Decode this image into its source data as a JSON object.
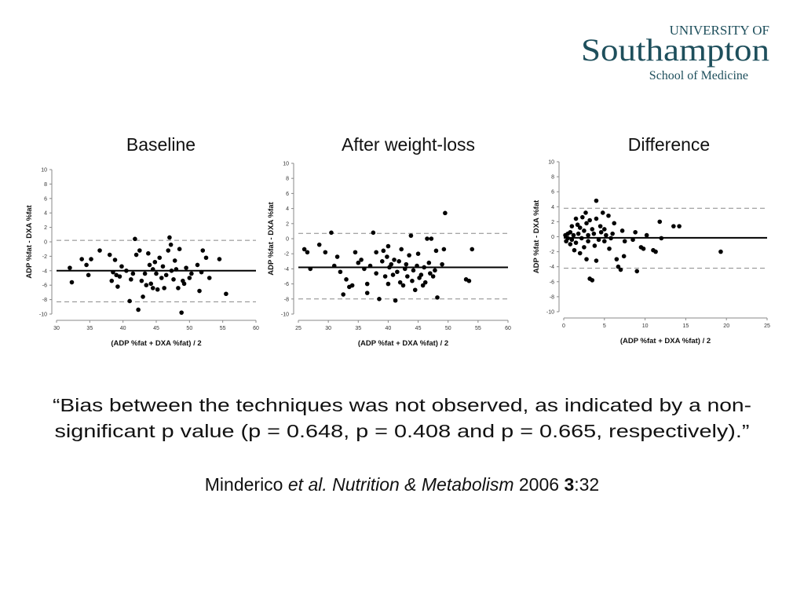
{
  "logo": {
    "line1": "UNIVERSITY OF",
    "line2": "Southampton",
    "line3": "School of Medicine"
  },
  "chart_data": [
    {
      "type": "scatter",
      "title": "Baseline",
      "xlabel": "(ADP %fat + DXA %fat) / 2",
      "ylabel": "ADP %fat - DXA %fat",
      "xlim": [
        30,
        60
      ],
      "ylim": [
        -10,
        10
      ],
      "xticks": [
        30,
        35,
        40,
        45,
        50,
        55,
        60
      ],
      "yticks": [
        -10,
        -8,
        -6,
        -4,
        -2,
        0,
        2,
        4,
        6,
        8,
        10
      ],
      "color": "#000000",
      "mean_line": -4.0,
      "limit_lines": [
        0.2,
        -8.3
      ],
      "x": [
        32,
        32.3,
        33.8,
        34.5,
        34.8,
        35.2,
        36.5,
        38,
        38.3,
        38.5,
        38.8,
        39,
        39.2,
        39.5,
        39.8,
        40.5,
        41,
        41.2,
        41.5,
        41.8,
        42,
        42.3,
        42.5,
        42.8,
        43,
        43.3,
        43.5,
        43.8,
        44,
        44.2,
        44.5,
        44.5,
        44.8,
        45,
        45.2,
        45.5,
        45.8,
        46,
        46.2,
        46.5,
        46.8,
        47,
        47.2,
        47.3,
        47.6,
        47.8,
        48,
        48.3,
        48.5,
        48.8,
        49,
        49.2,
        49.5,
        50,
        50.3,
        51.2,
        51.5,
        51.8,
        52,
        52.5,
        53,
        54.5,
        55.5
      ],
      "y": [
        -3.6,
        -5.6,
        -2.4,
        -3.2,
        -4.6,
        -2.4,
        -1.2,
        -1.8,
        -5.4,
        -4.2,
        -2.5,
        -4.6,
        -6.2,
        -4.8,
        -3.4,
        -4.0,
        -8.2,
        -5.2,
        -4.4,
        0.4,
        -1.8,
        -9.4,
        -1.2,
        -5.4,
        -7.6,
        -4.4,
        -6.0,
        -1.6,
        -3.2,
        -5.8,
        -6.4,
        -3.8,
        -2.8,
        -4.4,
        -6.6,
        -2.2,
        -5.0,
        -3.4,
        -6.4,
        -4.6,
        -1.2,
        0.6,
        -0.4,
        -4.0,
        -5.2,
        -2.6,
        -3.8,
        -6.4,
        -1.0,
        -9.8,
        -5.4,
        -5.8,
        -3.6,
        -5.0,
        -4.4,
        -3.2,
        -6.8,
        -4.2,
        -1.2,
        -2.2,
        -5.0,
        -2.4,
        -7.2
      ]
    },
    {
      "type": "scatter",
      "title": "After weight-loss",
      "xlabel": "(ADP %fat + DXA %fat) / 2",
      "ylabel": "ADP %fat - DXA %fat",
      "xlim": [
        25,
        60
      ],
      "ylim": [
        -10,
        10
      ],
      "xticks": [
        25,
        30,
        35,
        40,
        45,
        50,
        55,
        60
      ],
      "yticks": [
        -10,
        -8,
        -6,
        -4,
        -2,
        0,
        2,
        4,
        6,
        8,
        10
      ],
      "color": "#000000",
      "mean_line": -3.8,
      "limit_lines": [
        0.7,
        -8.0
      ],
      "x": [
        26,
        26.5,
        27,
        28.5,
        29.5,
        30.5,
        31,
        31.5,
        32,
        32.5,
        33,
        33.5,
        34,
        34.5,
        35,
        35.5,
        36,
        36.5,
        36.5,
        37,
        37.5,
        38,
        38,
        38.5,
        39,
        39.2,
        39.5,
        39.8,
        40,
        40,
        40.2,
        40.5,
        40.8,
        41,
        41.2,
        41.5,
        41.8,
        42,
        42.2,
        42.5,
        42.8,
        43,
        43.2,
        43.5,
        43.8,
        44,
        44.2,
        44.5,
        44.8,
        45,
        45.2,
        45.5,
        45.8,
        46,
        46.2,
        46.5,
        46.8,
        47,
        47.2,
        47.5,
        47.8,
        48,
        48.2,
        49,
        49.5,
        49.3,
        53,
        53.5,
        54
      ],
      "y": [
        -1.4,
        -1.8,
        -4.0,
        -0.8,
        -1.8,
        0.8,
        -3.6,
        -2.4,
        -4.4,
        -7.4,
        -5.4,
        -6.4,
        -6.2,
        -1.8,
        -3.2,
        -2.8,
        -4.0,
        -6.0,
        -7.2,
        -3.6,
        0.8,
        -4.6,
        -1.8,
        -8.0,
        -3.0,
        -1.6,
        -5.0,
        -2.4,
        -1.0,
        -6.0,
        -3.8,
        -3.4,
        -4.8,
        -2.8,
        -8.2,
        -4.4,
        -3.0,
        -5.8,
        -1.4,
        -6.2,
        -4.0,
        -3.4,
        -5.0,
        -2.2,
        0.4,
        -5.6,
        -4.2,
        -6.8,
        -3.6,
        -2.0,
        -5.2,
        -4.8,
        -6.2,
        -3.8,
        -5.8,
        0,
        -3.2,
        -4.6,
        0,
        -5.0,
        -4.2,
        -1.6,
        -7.8,
        -3.4,
        3.4,
        -1.4,
        -5.4,
        -5.6,
        -1.4
      ]
    },
    {
      "type": "scatter",
      "title": "Difference",
      "xlabel": "(ADP %fat + DXA %fat) / 2",
      "ylabel": "ADP %fat - DXA %fat",
      "xlim": [
        0,
        25
      ],
      "ylim": [
        -10,
        10
      ],
      "xticks": [
        0,
        5,
        10,
        15,
        20,
        25
      ],
      "yticks": [
        -10,
        -8,
        -6,
        -4,
        -2,
        0,
        2,
        4,
        6,
        8,
        10
      ],
      "color": "#000000",
      "mean_line": -0.15,
      "limit_lines": [
        3.8,
        -4.2
      ],
      "x": [
        0.2,
        0.3,
        0.5,
        0.5,
        0.8,
        0.8,
        1,
        1,
        1.2,
        1.3,
        1.5,
        1.5,
        1.7,
        1.8,
        2,
        2,
        2.2,
        2.3,
        2.5,
        2.5,
        2.7,
        2.8,
        2.8,
        3,
        3,
        3.2,
        3.2,
        3.5,
        3.5,
        3.7,
        3.8,
        4,
        4,
        4,
        4.3,
        4.5,
        4.6,
        4.8,
        5,
        5,
        5.2,
        5.5,
        5.6,
        5.8,
        6,
        6.2,
        6.5,
        6.7,
        7,
        7.2,
        7.4,
        7.5,
        8.5,
        8.8,
        9,
        9.5,
        9.8,
        10.2,
        11,
        11.3,
        11.8,
        12,
        13.5,
        14.2,
        19.3
      ],
      "y": [
        0.2,
        -0.6,
        0.4,
        -0.2,
        -1.0,
        0.6,
        -0.4,
        1.4,
        0.2,
        -1.8,
        2.4,
        -0.8,
        1.6,
        0.4,
        -2.2,
        1.2,
        -0.2,
        2.6,
        0.8,
        -1.4,
        3.2,
        -3.0,
        1.8,
        0.2,
        -0.6,
        2.2,
        -5.6,
        -5.8,
        1.0,
        0.4,
        -1.2,
        4.8,
        2.4,
        -3.2,
        -0.4,
        1.4,
        0.6,
        3.2,
        -0.6,
        1.0,
        0.2,
        2.8,
        -1.6,
        -0.2,
        0.4,
        1.8,
        -3.0,
        -4.0,
        -4.4,
        0.8,
        -2.6,
        -0.6,
        -0.4,
        0.6,
        -4.6,
        -1.4,
        -1.6,
        0.2,
        -1.8,
        -2.0,
        2.0,
        -0.2,
        1.4,
        1.4,
        -2.0
      ]
    }
  ],
  "quote": [
    "“Bias between the techniques was not observed, as indicated by a non-",
    "significant p value (p = 0.648, p = 0.408 and p = 0.665, respectively).”"
  ],
  "citation": {
    "author": "Minderico",
    "journal": "et al. Nutrition & Metabolism",
    "year": "2006",
    "volume": "3",
    "pages": ":32"
  }
}
